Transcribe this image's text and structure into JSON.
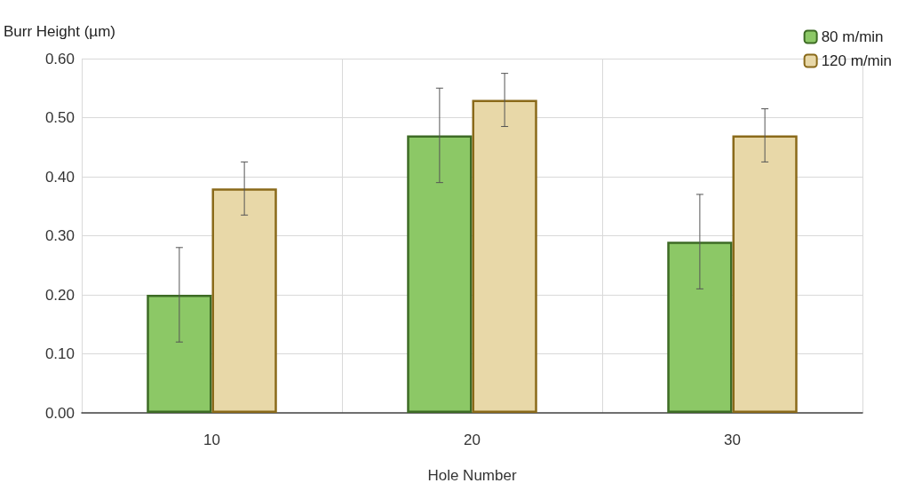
{
  "chart_data": {
    "type": "bar",
    "xlabel": "Hole Number",
    "ylabel": "Burr Height (µm)",
    "categories": [
      "10",
      "20",
      "30"
    ],
    "series": [
      {
        "name": "80 m/min",
        "color": "#8cc866",
        "values": [
          0.2,
          0.47,
          0.29
        ],
        "errors": [
          0.08,
          0.08,
          0.08
        ]
      },
      {
        "name": "120 m/min",
        "color": "#e8d8a8",
        "values": [
          0.38,
          0.53,
          0.47
        ],
        "errors": [
          0.045,
          0.045,
          0.045
        ]
      }
    ],
    "ylim": [
      0,
      0.6
    ],
    "yticks": [
      {
        "value": 0,
        "label": "0.00"
      },
      {
        "value": 0.1,
        "label": "0.10"
      },
      {
        "value": 0.2,
        "label": "0.20"
      },
      {
        "value": 0.3,
        "label": "0.30"
      },
      {
        "value": 0.4,
        "label": "0.40"
      },
      {
        "value": 0.5,
        "label": "0.50"
      },
      {
        "value": 0.6,
        "label": "0.60"
      }
    ],
    "grid": true,
    "legend": "top right"
  }
}
